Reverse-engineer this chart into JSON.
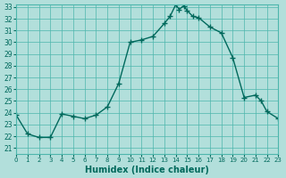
{
  "title": "",
  "xlabel": "Humidex (Indice chaleur)",
  "ylabel": "",
  "background_color": "#b2dfdb",
  "grid_color": "#4db6ac",
  "line_color": "#00695c",
  "marker_color": "#00695c",
  "ylim": [
    21,
    33
  ],
  "xlim": [
    0,
    23
  ],
  "yticks": [
    21,
    22,
    23,
    24,
    25,
    26,
    27,
    28,
    29,
    30,
    31,
    32,
    33
  ],
  "xticks": [
    0,
    1,
    2,
    3,
    4,
    5,
    6,
    7,
    8,
    9,
    10,
    11,
    12,
    13,
    14,
    15,
    16,
    17,
    18,
    19,
    20,
    21,
    22,
    23
  ],
  "x": [
    0,
    1,
    2,
    3,
    4,
    5,
    6,
    7,
    8,
    9,
    10,
    11,
    12,
    13,
    13.5,
    14,
    14.3,
    14.7,
    15,
    15.5,
    16,
    17,
    18,
    19,
    20,
    21,
    21.5,
    22,
    23
  ],
  "y": [
    23.8,
    22.2,
    21.9,
    21.9,
    23.9,
    23.7,
    23.5,
    23.8,
    24.5,
    26.5,
    30.0,
    30.2,
    30.5,
    31.6,
    32.2,
    33.2,
    32.8,
    33.1,
    32.7,
    32.2,
    32.1,
    31.3,
    30.8,
    28.7,
    25.3,
    25.5,
    25.0,
    24.1,
    23.5
  ]
}
